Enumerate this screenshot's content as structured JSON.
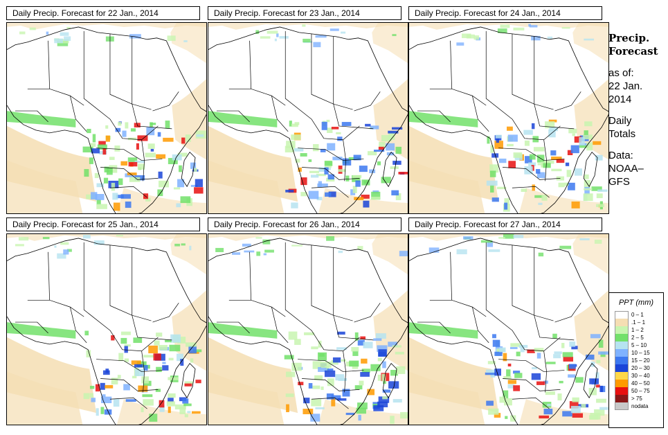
{
  "panels": [
    {
      "title": "Daily Precip. Forecast for  22 Jan., 2014"
    },
    {
      "title": "Daily Precip. Forecast for  23 Jan., 2014"
    },
    {
      "title": "Daily Precip. Forecast for  24 Jan., 2014"
    },
    {
      "title": "Daily Precip. Forecast for  25 Jan., 2014"
    },
    {
      "title": "Daily Precip. Forecast for  26 Jan., 2014"
    },
    {
      "title": "Daily Precip. Forecast for  27 Jan., 2014"
    }
  ],
  "side": {
    "line1": "Precip.",
    "line2": "Forecast",
    "line3": "as of:",
    "line4": "22 Jan.",
    "line5": "2014",
    "line6": "Daily",
    "line7": "Totals",
    "line8": "Data:",
    "line9": "NOAA–",
    "line10": "GFS"
  },
  "legend": {
    "title": "PPT (mm)",
    "items": [
      {
        "label": "0 – 1",
        "color": "#ffffff"
      },
      {
        "label": ".1 – 1",
        "color": "#f5deb3"
      },
      {
        "label": "1 – 2",
        "color": "#c8f5b0"
      },
      {
        "label": "2 – 5",
        "color": "#72e06a"
      },
      {
        "label": "5 – 10",
        "color": "#b6e3f0"
      },
      {
        "label": "10 – 15",
        "color": "#7fb2ff"
      },
      {
        "label": "15 – 20",
        "color": "#3c78f0"
      },
      {
        "label": "20 – 30",
        "color": "#1a44d8"
      },
      {
        "label": "30 – 40",
        "color": "#ffd84a"
      },
      {
        "label": "40 – 50",
        "color": "#ff9a00"
      },
      {
        "label": "50 – 75",
        "color": "#e81010"
      },
      {
        "label": "> 75",
        "color": "#8a1818"
      },
      {
        "label": "nodata",
        "color": "#c8c8c8"
      }
    ]
  }
}
